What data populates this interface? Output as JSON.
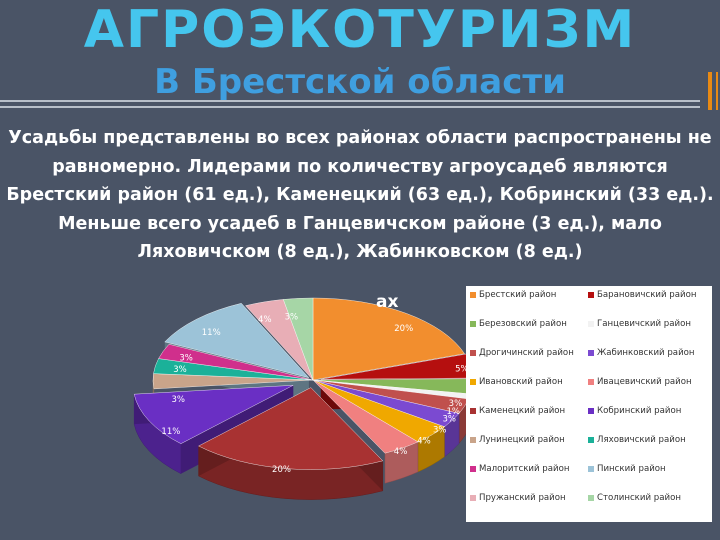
{
  "header": {
    "title": "АГРОЭКОТУРИЗМ",
    "subtitle": "В Брестской области"
  },
  "body": {
    "paragraph": "Усадьбы представлены во всех районах области распространены не равномерно. Лидерами по количеству агроусадеб являются Брестский район (61 ед.), Каменецкий (63 ед.), Кобринский (33 ед.). Меньше всего усадеб в Ганцевичском районе (3 ед.), мало Ляховичском (8 ед.), Жабинковском (8 ед.)",
    "overflow_text": "ах"
  },
  "chart_data": {
    "type": "pie",
    "style": "3d-exploded",
    "legend_position": "right",
    "categories": [
      "Брестский район",
      "Барановичский район",
      "Березовский район",
      "Ганцевичский район",
      "Дрогичинский район",
      "Жабинковский район",
      "Ивановский район",
      "Ивацевичский район",
      "Каменецкий район",
      "Кобринский район",
      "Лунинецкий район",
      "Ляховичский район",
      "Малоритский район",
      "Пинский район",
      "Пружанский район",
      "Столинский район"
    ],
    "values": [
      20,
      5,
      3,
      1,
      3,
      3,
      4,
      4,
      20,
      11,
      3,
      3,
      3,
      11,
      4,
      3
    ],
    "data_labels": [
      "20%",
      "5%",
      "3%",
      "1%",
      "3%",
      "3%",
      "4%",
      "4%",
      "20%",
      "11%",
      "3%",
      "3%",
      "3%",
      "11%",
      "4%",
      "3%"
    ],
    "colors": [
      "#f28e2e",
      "#b50f0f",
      "#86b85a",
      "#f2f2f2",
      "#c0504d",
      "#7b4ad1",
      "#f0a800",
      "#f08080",
      "#a83232",
      "#6a2fc4",
      "#c9a48a",
      "#1bb199",
      "#d02f8c",
      "#9cc3d8",
      "#e8aeb6",
      "#a6d6a6"
    ]
  }
}
